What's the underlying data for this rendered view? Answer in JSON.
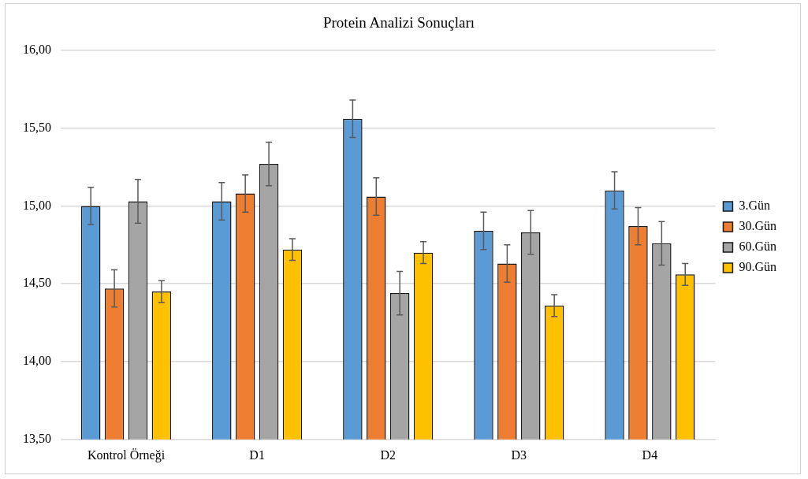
{
  "chart_data": {
    "type": "bar",
    "title": "Protein Analizi Sonuçları",
    "categories": [
      "Kontrol Örneği",
      "D1",
      "D2",
      "D3",
      "D4"
    ],
    "series": [
      {
        "name": "3.Gün",
        "color": "#5b9bd5",
        "values": [
          15.0,
          15.03,
          15.56,
          14.84,
          15.1
        ],
        "errors": [
          0.12,
          0.12,
          0.12,
          0.12,
          0.12
        ]
      },
      {
        "name": "30.Gün",
        "color": "#ed7d31",
        "values": [
          14.47,
          15.08,
          15.06,
          14.63,
          14.87
        ],
        "errors": [
          0.12,
          0.12,
          0.12,
          0.12,
          0.12
        ]
      },
      {
        "name": "60.Gün",
        "color": "#a5a5a5",
        "values": [
          15.03,
          15.27,
          14.44,
          14.83,
          14.76
        ],
        "errors": [
          0.14,
          0.14,
          0.14,
          0.14,
          0.14
        ]
      },
      {
        "name": "90.Gün",
        "color": "#ffc000",
        "values": [
          14.45,
          14.72,
          14.7,
          14.36,
          14.56
        ],
        "errors": [
          0.07,
          0.07,
          0.07,
          0.07,
          0.07
        ]
      }
    ],
    "ylim": [
      13.5,
      16
    ],
    "yticks": [
      {
        "value": 13.5,
        "label": "13,50"
      },
      {
        "value": 14,
        "label": "14,00"
      },
      {
        "value": 14.5,
        "label": "14,50"
      },
      {
        "value": 15,
        "label": "15,00"
      },
      {
        "value": 15.5,
        "label": "15,50"
      },
      {
        "value": 16,
        "label": "16,00"
      }
    ],
    "grid": "y",
    "legend": "right"
  }
}
